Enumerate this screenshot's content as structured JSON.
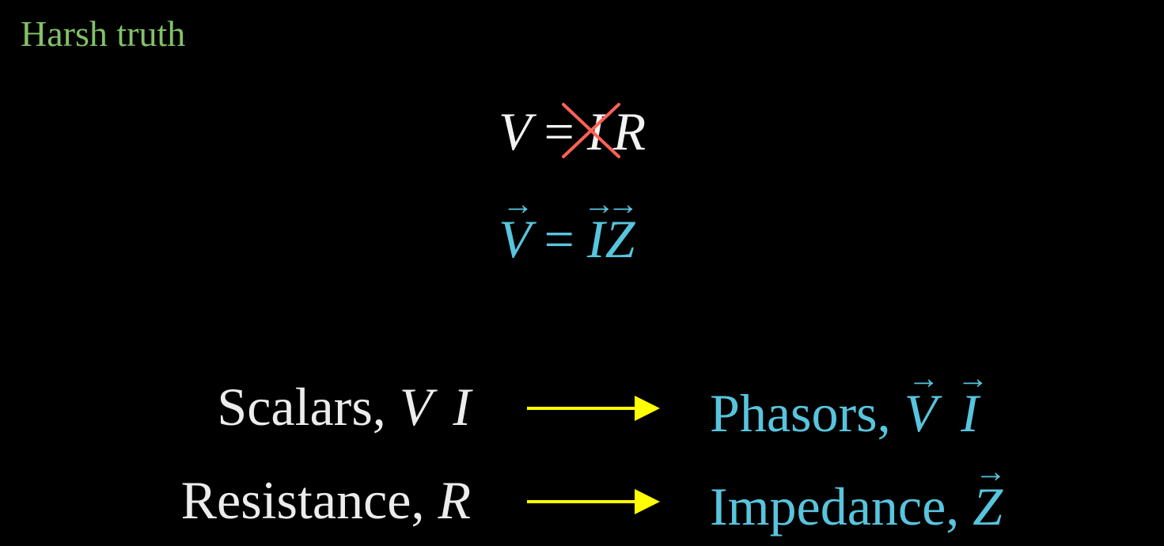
{
  "heading": "Harsh truth",
  "colors": {
    "heading": "#83c167",
    "white": "#f2f2f2",
    "blue": "#58c4dd",
    "yellow": "#ffff00",
    "red": "#fc6255"
  },
  "equation_old": {
    "lhs": "V",
    "op": "=",
    "rhs1": "I",
    "rhs2": "R"
  },
  "equation_new": {
    "lhs": "V",
    "op": "=",
    "rhs1": "I",
    "rhs2": "Z"
  },
  "mappings": [
    {
      "from_label": "Scalars, ",
      "from_symbols": [
        "V",
        "I"
      ],
      "to_label": "Phasors, ",
      "to_symbols": [
        "V",
        "I"
      ]
    },
    {
      "from_label": "Resistance, ",
      "from_symbols": [
        "R"
      ],
      "to_label": "Impedance, ",
      "to_symbols": [
        "Z"
      ]
    }
  ],
  "icons": {
    "strike": "x-mark-icon",
    "mapping_arrow": "right-arrow-icon"
  }
}
